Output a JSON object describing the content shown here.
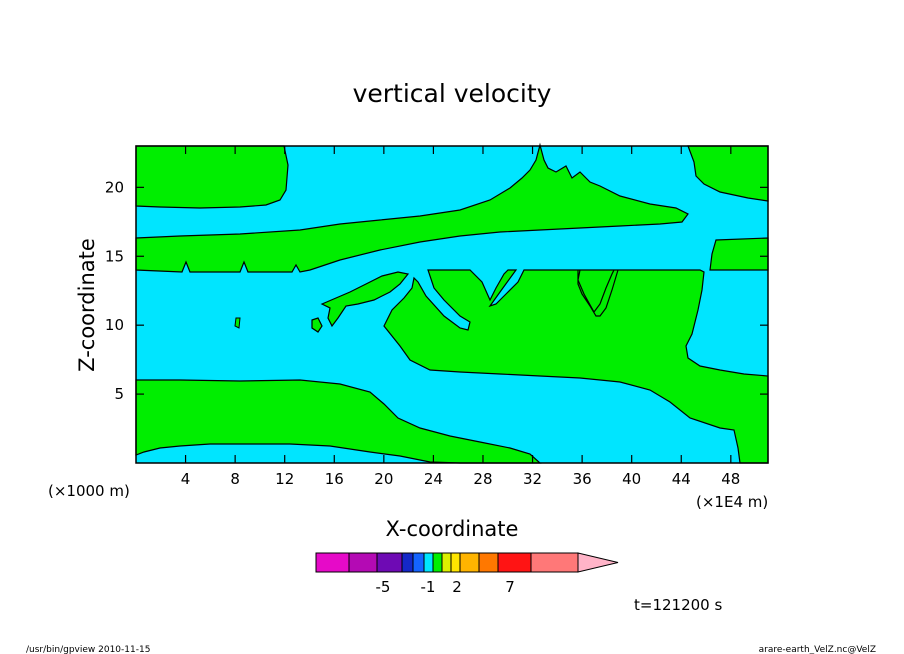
{
  "chart_data": {
    "type": "contour",
    "title": "vertical velocity",
    "xlabel": "X-coordinate",
    "ylabel": "Z-coordinate",
    "x_unit_label": "(×1E4 m)",
    "y_unit_label": "(×1000 m)",
    "xlim": [
      0,
      51
    ],
    "ylim": [
      0,
      23
    ],
    "x_ticks": [
      4,
      8,
      12,
      16,
      20,
      24,
      28,
      32,
      36,
      40,
      44,
      48
    ],
    "y_ticks": [
      5,
      10,
      15,
      20
    ],
    "fill_colors": {
      "negative": "#00e5ff",
      "positive": "#00ee00"
    },
    "colorbar": {
      "colors": [
        "#e60ac8",
        "#b40ab4",
        "#6e0ab4",
        "#1428c8",
        "#1464ff",
        "#00e5ff",
        "#00ee00",
        "#dcf000",
        "#ffe600",
        "#ffb400",
        "#ff7800",
        "#ff1414",
        "#ff7878"
      ],
      "arrow_color": "#ffb4c8",
      "labels": [
        "-5",
        "-1",
        "2",
        "7"
      ]
    },
    "time_label": "t=121200 s"
  },
  "footer": {
    "left": "/usr/bin/gpview  2010-11-15",
    "right": "arare-earth_VelZ.nc@VelZ"
  }
}
